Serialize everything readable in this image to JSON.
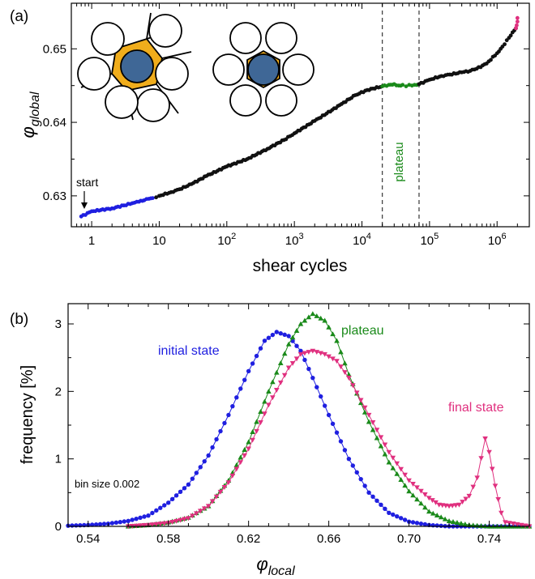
{
  "chart_data": [
    {
      "panel_label": "(a)",
      "type": "scatter",
      "x_scale": "log",
      "xlabel": "shear cycles",
      "ylabel": "φglobal",
      "ylabel_symbol": "φ",
      "ylabel_sub": "global",
      "xlim": [
        0.5,
        3000000
      ],
      "ylim": [
        0.6258,
        0.6562
      ],
      "xticks": [
        {
          "v": 1,
          "base": "1",
          "exp": ""
        },
        {
          "v": 10,
          "base": "10",
          "exp": ""
        },
        {
          "v": 100,
          "base": "10",
          "exp": "2"
        },
        {
          "v": 1000,
          "base": "10",
          "exp": "3"
        },
        {
          "v": 10000,
          "base": "10",
          "exp": "4"
        },
        {
          "v": 100000,
          "base": "10",
          "exp": "5"
        },
        {
          "v": 1000000,
          "base": "10",
          "exp": "6"
        }
      ],
      "yticks": [
        {
          "v": 0.63,
          "label": "0.63"
        },
        {
          "v": 0.64,
          "label": "0.64"
        },
        {
          "v": 0.65,
          "label": "0.65"
        }
      ],
      "annotations": {
        "start_label": "start",
        "plateau_label": "plateau",
        "start_x": 0.7,
        "plateau_bounds": [
          20000,
          70000
        ]
      },
      "series": [
        {
          "color": "#1f1fe0",
          "points": [
            [
              0.7,
              0.6272
            ],
            [
              1,
              0.6279
            ],
            [
              2,
              0.6283
            ],
            [
              3,
              0.6287
            ],
            [
              4,
              0.629
            ],
            [
              5,
              0.6292
            ],
            [
              6,
              0.6294
            ],
            [
              7,
              0.6296
            ],
            [
              8,
              0.6297
            ]
          ]
        },
        {
          "color": "#111111",
          "points": [
            [
              9,
              0.6298
            ],
            [
              10,
              0.63
            ],
            [
              15,
              0.6305
            ],
            [
              20,
              0.6309
            ],
            [
              30,
              0.6316
            ],
            [
              50,
              0.6327
            ],
            [
              100,
              0.634
            ],
            [
              200,
              0.635
            ],
            [
              400,
              0.6364
            ],
            [
              700,
              0.6376
            ],
            [
              1000,
              0.6385
            ],
            [
              2000,
              0.6402
            ],
            [
              3000,
              0.6412
            ],
            [
              5000,
              0.6425
            ],
            [
              8000,
              0.6437
            ],
            [
              12000,
              0.6444
            ],
            [
              20000,
              0.6449
            ]
          ]
        },
        {
          "color": "#1a8a1a",
          "points": [
            [
              20000,
              0.6449
            ],
            [
              25000,
              0.6451
            ],
            [
              30000,
              0.6452
            ],
            [
              35000,
              0.645
            ],
            [
              40000,
              0.6451
            ],
            [
              45000,
              0.6449
            ],
            [
              50000,
              0.6451
            ],
            [
              55000,
              0.645
            ],
            [
              60000,
              0.6451
            ],
            [
              70000,
              0.6452
            ]
          ]
        },
        {
          "color": "#111111",
          "points": [
            [
              70000,
              0.6452
            ],
            [
              100000,
              0.6458
            ],
            [
              150000,
              0.6463
            ],
            [
              200000,
              0.6465
            ],
            [
              300000,
              0.6468
            ],
            [
              400000,
              0.647
            ],
            [
              500000,
              0.6473
            ],
            [
              700000,
              0.648
            ],
            [
              1000000,
              0.6494
            ],
            [
              1200000,
              0.6503
            ],
            [
              1500000,
              0.6515
            ],
            [
              1800000,
              0.6525
            ],
            [
              1900000,
              0.6528
            ]
          ]
        },
        {
          "color": "#e0307f",
          "points": [
            [
              1900000,
              0.6528
            ],
            [
              1950000,
              0.6532
            ],
            [
              2000000,
              0.6537
            ],
            [
              2000000,
              0.6542
            ]
          ]
        }
      ]
    },
    {
      "panel_label": "(b)",
      "type": "line",
      "xlabel": "φlocal",
      "xlabel_symbol": "φ",
      "xlabel_sub": "local",
      "ylabel": "frequency [%]",
      "xlim": [
        0.53,
        0.76
      ],
      "ylim": [
        0,
        3.3
      ],
      "xticks": [
        {
          "v": 0.54,
          "label": "0.54"
        },
        {
          "v": 0.58,
          "label": "0.58"
        },
        {
          "v": 0.62,
          "label": "0.62"
        },
        {
          "v": 0.66,
          "label": "0.66"
        },
        {
          "v": 0.7,
          "label": "0.70"
        },
        {
          "v": 0.74,
          "label": "0.74"
        }
      ],
      "yticks": [
        {
          "v": 0,
          "label": "0"
        },
        {
          "v": 1,
          "label": "1"
        },
        {
          "v": 2,
          "label": "2"
        },
        {
          "v": 3,
          "label": "3"
        }
      ],
      "bin_note": "bin size 0.002",
      "series": [
        {
          "name": "initial state",
          "color": "#1f1fe0",
          "marker": "circle",
          "points": [
            [
              0.53,
              0.01
            ],
            [
              0.54,
              0.02
            ],
            [
              0.55,
              0.04
            ],
            [
              0.56,
              0.08
            ],
            [
              0.57,
              0.16
            ],
            [
              0.58,
              0.35
            ],
            [
              0.59,
              0.62
            ],
            [
              0.6,
              1.05
            ],
            [
              0.61,
              1.65
            ],
            [
              0.62,
              2.3
            ],
            [
              0.628,
              2.75
            ],
            [
              0.634,
              2.88
            ],
            [
              0.64,
              2.82
            ],
            [
              0.646,
              2.6
            ],
            [
              0.652,
              2.2
            ],
            [
              0.66,
              1.65
            ],
            [
              0.67,
              1.0
            ],
            [
              0.68,
              0.5
            ],
            [
              0.69,
              0.2
            ],
            [
              0.7,
              0.07
            ],
            [
              0.71,
              0.02
            ],
            [
              0.72,
              0.0
            ],
            [
              0.76,
              0.0
            ]
          ]
        },
        {
          "name": "plateau",
          "color": "#1a8a1a",
          "marker": "triangle-up",
          "points": [
            [
              0.56,
              0.0
            ],
            [
              0.57,
              0.02
            ],
            [
              0.58,
              0.06
            ],
            [
              0.59,
              0.13
            ],
            [
              0.6,
              0.3
            ],
            [
              0.61,
              0.68
            ],
            [
              0.62,
              1.25
            ],
            [
              0.63,
              2.0
            ],
            [
              0.64,
              2.7
            ],
            [
              0.646,
              3.0
            ],
            [
              0.652,
              3.15
            ],
            [
              0.658,
              3.05
            ],
            [
              0.664,
              2.75
            ],
            [
              0.67,
              2.25
            ],
            [
              0.68,
              1.55
            ],
            [
              0.69,
              0.95
            ],
            [
              0.7,
              0.52
            ],
            [
              0.71,
              0.22
            ],
            [
              0.72,
              0.08
            ],
            [
              0.73,
              0.02
            ],
            [
              0.74,
              0.0
            ],
            [
              0.76,
              0.0
            ]
          ]
        },
        {
          "name": "final state",
          "color": "#e0307f",
          "marker": "triangle-down",
          "points": [
            [
              0.56,
              0.0
            ],
            [
              0.57,
              0.02
            ],
            [
              0.58,
              0.05
            ],
            [
              0.59,
              0.12
            ],
            [
              0.6,
              0.3
            ],
            [
              0.61,
              0.65
            ],
            [
              0.62,
              1.15
            ],
            [
              0.63,
              1.8
            ],
            [
              0.64,
              2.35
            ],
            [
              0.646,
              2.55
            ],
            [
              0.652,
              2.6
            ],
            [
              0.658,
              2.55
            ],
            [
              0.664,
              2.45
            ],
            [
              0.67,
              2.2
            ],
            [
              0.68,
              1.65
            ],
            [
              0.69,
              1.1
            ],
            [
              0.7,
              0.68
            ],
            [
              0.71,
              0.42
            ],
            [
              0.715,
              0.32
            ],
            [
              0.72,
              0.3
            ],
            [
              0.725,
              0.32
            ],
            [
              0.73,
              0.45
            ],
            [
              0.734,
              0.72
            ],
            [
              0.738,
              1.3
            ],
            [
              0.74,
              1.1
            ],
            [
              0.743,
              0.6
            ],
            [
              0.746,
              0.2
            ],
            [
              0.748,
              0.06
            ],
            [
              0.76,
              0.0
            ]
          ]
        }
      ]
    }
  ]
}
